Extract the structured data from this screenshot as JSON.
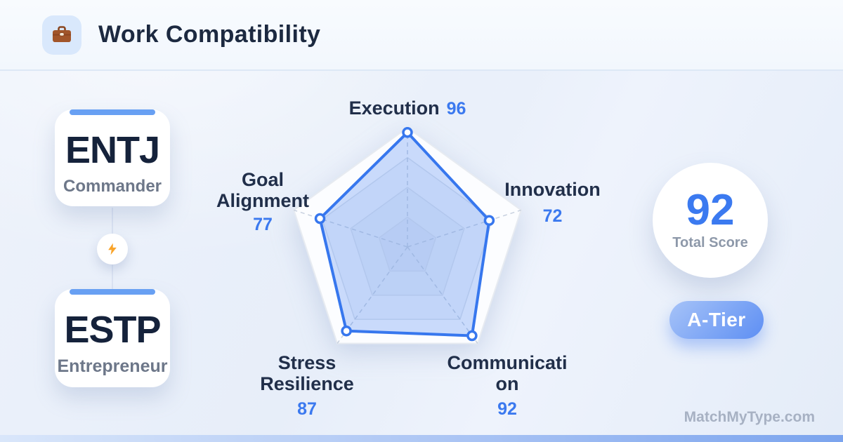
{
  "header": {
    "title": "Work Compatibility"
  },
  "pair": {
    "top": {
      "code": "ENTJ",
      "name": "Commander"
    },
    "bottom": {
      "code": "ESTP",
      "name": "Entrepreneur"
    }
  },
  "score": {
    "value": "92",
    "label": "Total Score",
    "tier": "A-Tier"
  },
  "watermark": "MatchMyType.com",
  "colors": {
    "accent_blue": "#3777ee",
    "value_blue": "#3b79ef",
    "label_dark": "#212f4a",
    "card_bar_blue": "#68a0f3",
    "tier_gradient_start": "#a6c3f8",
    "tier_gradient_end": "#5e8ff3",
    "bolt_orange": "#f9a42a",
    "bottom_bar_start": "#d9e6fa",
    "bottom_bar_end": "#7ba4ee"
  },
  "chart_data": {
    "type": "radar",
    "categories": [
      "Execution",
      "Innovation",
      "Communication",
      "Stress Resilience",
      "Goal Alignment"
    ],
    "values": [
      96,
      72,
      92,
      87,
      77
    ],
    "max": 100,
    "grid_rings": [
      0.25,
      0.5,
      0.75,
      1
    ],
    "grid": "dashed-axes-with-pentagon-rings",
    "legend": "none",
    "series_stroke": "#3777ee",
    "series_fill": "rgba(55,119,238,0.26)"
  }
}
